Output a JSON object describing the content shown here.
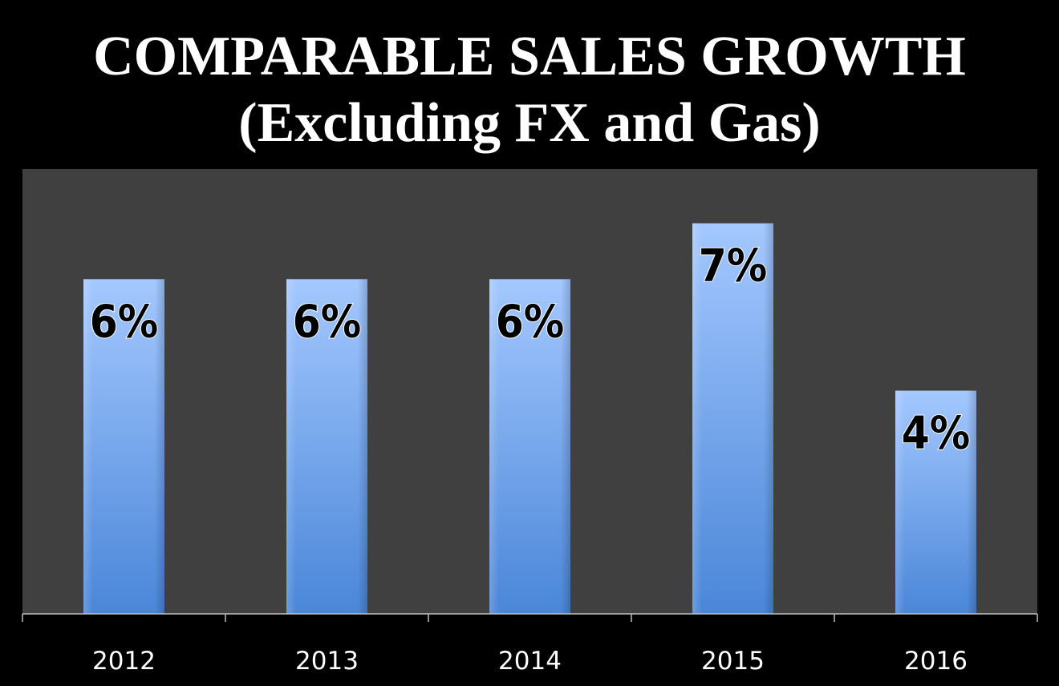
{
  "chart_data": {
    "type": "bar",
    "title": "COMPARABLE SALES GROWTH",
    "subtitle": "(Excluding FX and Gas)",
    "categories": [
      "2012",
      "2013",
      "2014",
      "2015",
      "2016"
    ],
    "values": [
      6,
      6,
      6,
      7,
      4
    ],
    "data_labels": [
      "6%",
      "6%",
      "6%",
      "7%",
      "4%"
    ],
    "unit": "%",
    "xlabel": "",
    "ylabel": "",
    "ylim": [
      0,
      8
    ],
    "grid": false,
    "legend": "none",
    "colors": {
      "page_background": "#000000",
      "plot_background": "#404040",
      "bar_top": "#a4c8ff",
      "bar_bottom": "#4a86d8",
      "title_text": "#ffffff",
      "tick_text": "#ffffff",
      "label_fill": "#000000",
      "label_stroke": "#ffffff",
      "axis_line": "#bfbfbf"
    }
  }
}
